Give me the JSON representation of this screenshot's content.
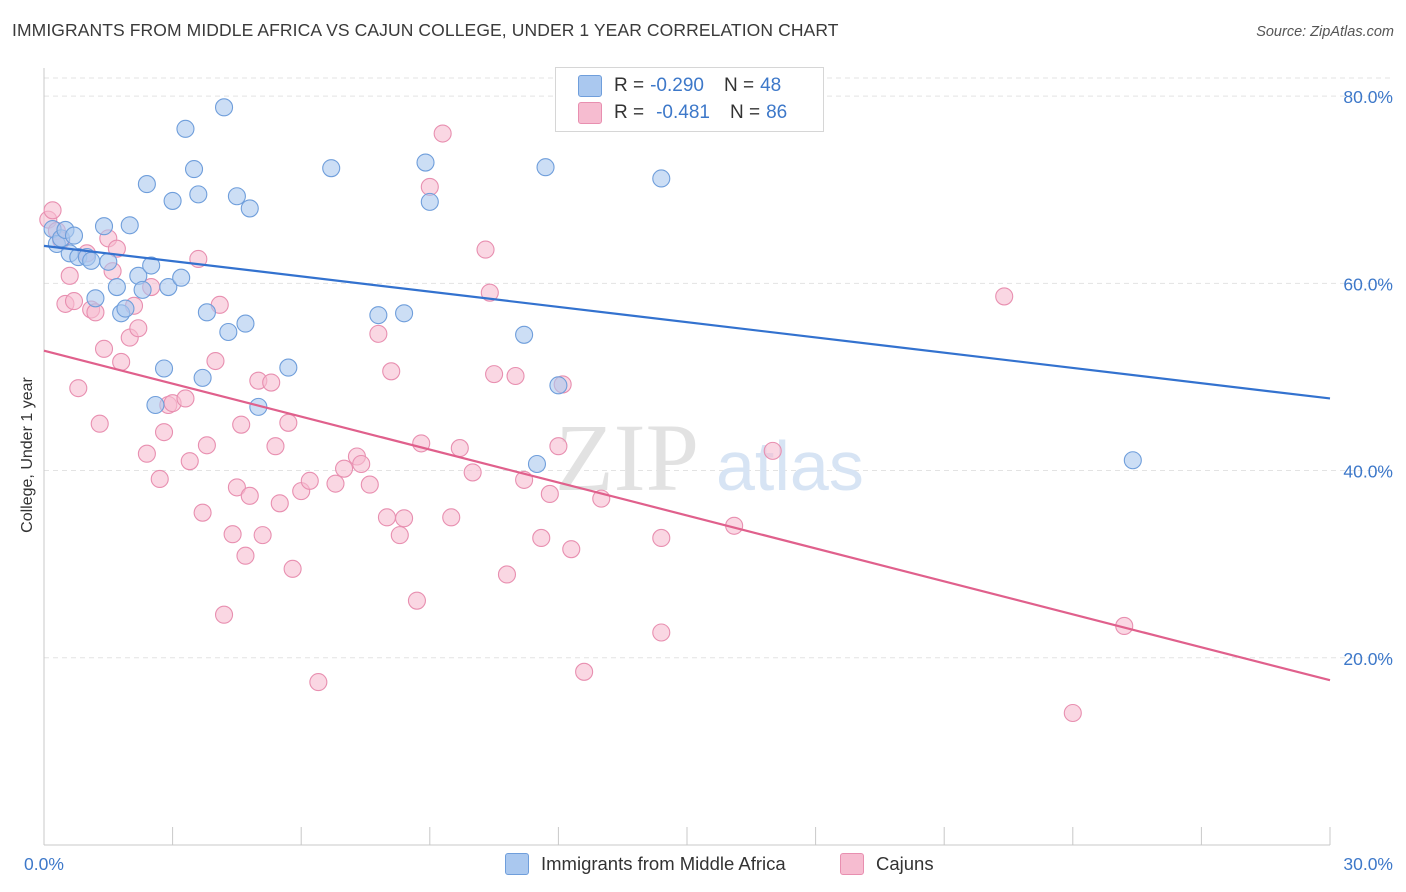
{
  "title": "IMMIGRANTS FROM MIDDLE AFRICA VS CAJUN COLLEGE, UNDER 1 YEAR CORRELATION CHART",
  "source": "Source: ZipAtlas.com",
  "watermark": {
    "zip": "ZIP",
    "atlas": "atlas"
  },
  "legend": {
    "r_label": "R =",
    "n_label": "N =",
    "series": [
      {
        "r": "-0.290",
        "n": "48"
      },
      {
        "r": "-0.481",
        "n": "86"
      }
    ]
  },
  "colors": {
    "blue_fill": "#aac8ef",
    "blue_stroke": "#6f9edb",
    "blue_line": "#3372cf",
    "pink_fill": "#f6bcd0",
    "pink_stroke": "#e88fb0",
    "pink_line": "#e0608c",
    "tick_text": "#3d78c9",
    "grid": "#e3e3e3"
  },
  "chart_data": {
    "type": "scatter",
    "title": "IMMIGRANTS FROM MIDDLE AFRICA VS CAJUN COLLEGE, UNDER 1 YEAR CORRELATION CHART",
    "xlabel": "",
    "ylabel": "College, Under 1 year",
    "xlim": [
      0,
      30
    ],
    "ylim": [
      0,
      83
    ],
    "x_tick_labels": [
      "0.0%",
      "30.0%"
    ],
    "y_ticks": [
      20,
      40,
      60,
      80
    ],
    "y_tick_labels": [
      "20.0%",
      "40.0%",
      "60.0%",
      "80.0%"
    ],
    "grid": true,
    "legend_position": "top-center",
    "series": [
      {
        "name": "Immigrants from Middle Africa",
        "r": -0.29,
        "n": 48,
        "trend": {
          "x": [
            0,
            30
          ],
          "y": [
            64.0,
            47.7
          ]
        },
        "points": [
          [
            0.2,
            65.8
          ],
          [
            0.3,
            64.2
          ],
          [
            0.4,
            64.8
          ],
          [
            0.5,
            65.7
          ],
          [
            0.6,
            63.2
          ],
          [
            0.7,
            65.1
          ],
          [
            0.8,
            62.8
          ],
          [
            1.0,
            62.8
          ],
          [
            1.1,
            62.4
          ],
          [
            1.2,
            58.4
          ],
          [
            1.4,
            66.1
          ],
          [
            1.5,
            62.3
          ],
          [
            1.7,
            59.6
          ],
          [
            1.8,
            56.8
          ],
          [
            1.9,
            57.3
          ],
          [
            2.0,
            66.2
          ],
          [
            2.2,
            60.8
          ],
          [
            2.3,
            59.3
          ],
          [
            2.4,
            70.6
          ],
          [
            2.5,
            61.9
          ],
          [
            2.8,
            50.9
          ],
          [
            2.9,
            59.6
          ],
          [
            3.0,
            68.8
          ],
          [
            3.2,
            60.6
          ],
          [
            3.3,
            76.5
          ],
          [
            3.5,
            72.2
          ],
          [
            3.6,
            69.5
          ],
          [
            3.7,
            49.9
          ],
          [
            3.8,
            56.9
          ],
          [
            4.2,
            78.8
          ],
          [
            4.3,
            54.8
          ],
          [
            4.5,
            69.3
          ],
          [
            4.7,
            55.7
          ],
          [
            4.8,
            68.0
          ],
          [
            5.0,
            46.8
          ],
          [
            5.7,
            51.0
          ],
          [
            6.7,
            72.3
          ],
          [
            7.8,
            56.6
          ],
          [
            8.4,
            56.8
          ],
          [
            8.9,
            72.9
          ],
          [
            9.0,
            68.7
          ],
          [
            11.2,
            54.5
          ],
          [
            11.5,
            40.7
          ],
          [
            11.7,
            72.4
          ],
          [
            12.0,
            49.1
          ],
          [
            14.4,
            71.2
          ],
          [
            25.4,
            41.1
          ],
          [
            2.6,
            47.0
          ]
        ]
      },
      {
        "name": "Cajuns",
        "r": -0.481,
        "n": 86,
        "trend": {
          "x": [
            0,
            30
          ],
          "y": [
            52.8,
            17.6
          ]
        },
        "points": [
          [
            0.1,
            66.8
          ],
          [
            0.2,
            67.8
          ],
          [
            0.3,
            65.6
          ],
          [
            0.4,
            64.6
          ],
          [
            0.5,
            57.8
          ],
          [
            0.6,
            60.8
          ],
          [
            0.7,
            58.1
          ],
          [
            0.8,
            48.8
          ],
          [
            1.0,
            63.2
          ],
          [
            1.1,
            57.2
          ],
          [
            1.2,
            56.9
          ],
          [
            1.3,
            45.0
          ],
          [
            1.4,
            53.0
          ],
          [
            1.5,
            64.8
          ],
          [
            1.6,
            61.3
          ],
          [
            1.7,
            63.7
          ],
          [
            1.8,
            51.6
          ],
          [
            2.0,
            54.2
          ],
          [
            2.1,
            57.6
          ],
          [
            2.2,
            55.2
          ],
          [
            2.4,
            41.8
          ],
          [
            2.5,
            59.6
          ],
          [
            2.7,
            39.1
          ],
          [
            2.8,
            44.1
          ],
          [
            2.9,
            47.0
          ],
          [
            3.0,
            47.2
          ],
          [
            3.3,
            47.7
          ],
          [
            3.4,
            41.0
          ],
          [
            3.6,
            62.6
          ],
          [
            3.7,
            35.5
          ],
          [
            3.8,
            42.7
          ],
          [
            4.0,
            51.7
          ],
          [
            4.1,
            57.7
          ],
          [
            4.2,
            24.6
          ],
          [
            4.4,
            33.2
          ],
          [
            4.5,
            38.2
          ],
          [
            4.6,
            44.9
          ],
          [
            4.7,
            30.9
          ],
          [
            4.8,
            37.3
          ],
          [
            5.0,
            49.6
          ],
          [
            5.1,
            33.1
          ],
          [
            5.3,
            49.4
          ],
          [
            5.4,
            42.6
          ],
          [
            5.5,
            36.5
          ],
          [
            5.7,
            45.1
          ],
          [
            5.8,
            29.5
          ],
          [
            6.0,
            37.8
          ],
          [
            6.2,
            38.9
          ],
          [
            6.4,
            17.4
          ],
          [
            6.8,
            38.6
          ],
          [
            7.0,
            40.2
          ],
          [
            7.3,
            41.5
          ],
          [
            7.4,
            40.7
          ],
          [
            7.6,
            38.5
          ],
          [
            7.8,
            54.6
          ],
          [
            8.0,
            35.0
          ],
          [
            8.1,
            50.6
          ],
          [
            8.3,
            33.1
          ],
          [
            8.4,
            34.9
          ],
          [
            8.7,
            26.1
          ],
          [
            8.8,
            42.9
          ],
          [
            9.0,
            70.3
          ],
          [
            9.3,
            76.0
          ],
          [
            9.5,
            35.0
          ],
          [
            9.7,
            42.4
          ],
          [
            10.0,
            39.8
          ],
          [
            10.3,
            63.6
          ],
          [
            10.4,
            59.0
          ],
          [
            10.5,
            50.3
          ],
          [
            10.8,
            28.9
          ],
          [
            11.0,
            50.1
          ],
          [
            11.2,
            39.0
          ],
          [
            11.6,
            32.8
          ],
          [
            11.8,
            37.5
          ],
          [
            12.0,
            42.6
          ],
          [
            12.1,
            49.2
          ],
          [
            12.3,
            31.6
          ],
          [
            12.6,
            18.5
          ],
          [
            13.0,
            37.0
          ],
          [
            14.4,
            32.8
          ],
          [
            14.4,
            22.7
          ],
          [
            16.1,
            34.1
          ],
          [
            17.0,
            42.1
          ],
          [
            22.4,
            58.6
          ],
          [
            24.0,
            14.1
          ],
          [
            25.2,
            23.4
          ]
        ]
      }
    ]
  },
  "bottom_legend": [
    {
      "label": "Immigrants from Middle Africa"
    },
    {
      "label": "Cajuns"
    }
  ]
}
